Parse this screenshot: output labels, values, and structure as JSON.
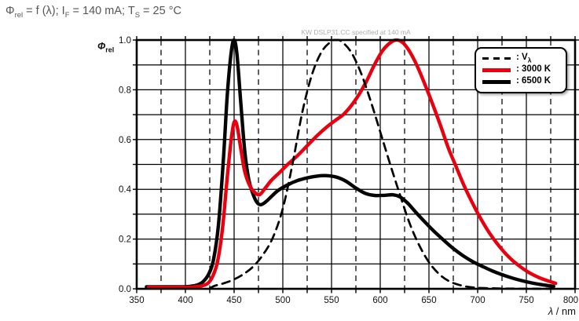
{
  "header": {
    "title": {
      "phi": "Φ",
      "phi_sub": "rel",
      "eq": " = f (λ); I",
      "i_sub": "F",
      "mid": " = 140 mA; T",
      "t_sub": "S",
      "end": " = 25 °C"
    }
  },
  "chart_data": {
    "type": "line",
    "watermark": "KW DSLP31.CC specified at 140 mA",
    "x_axis": {
      "label_italic": "λ",
      "label_rest": " / nm",
      "min": 350,
      "max": 800,
      "major_step": 50,
      "minor_step": 25,
      "tick_labels": [
        "350",
        "400",
        "450",
        "500",
        "550",
        "600",
        "650",
        "700",
        "750",
        "800"
      ]
    },
    "y_axis": {
      "label": "Φ",
      "label_sub": "rel",
      "min": 0.0,
      "max": 1.0,
      "major_step": 0.2,
      "minor_step": 0.1,
      "tick_labels": [
        "0.0",
        "0.2",
        "0.4",
        "0.6",
        "0.8",
        "1.0"
      ]
    },
    "grid": {
      "horizontal_every": 0.1,
      "vertical_solid_every": 50,
      "vertical_dashed_every": 25
    },
    "legend": {
      "position": "top-right",
      "entries": [
        {
          "prefix": ": V",
          "sub": "λ",
          "style": "dashed",
          "color": "#000000"
        },
        {
          "prefix": ": 3000 K",
          "sub": "",
          "style": "solid",
          "color": "#e8000e"
        },
        {
          "prefix": ": 6500 K",
          "sub": "",
          "style": "solid",
          "color": "#000000"
        }
      ]
    },
    "series": [
      {
        "name": "6500K",
        "color": "#050505",
        "width": 4.4,
        "dash": null,
        "points": [
          [
            360,
            0.008
          ],
          [
            395,
            0.008
          ],
          [
            405,
            0.01
          ],
          [
            412,
            0.015
          ],
          [
            418,
            0.028
          ],
          [
            424,
            0.06
          ],
          [
            429,
            0.12
          ],
          [
            434,
            0.26
          ],
          [
            439,
            0.52
          ],
          [
            443,
            0.78
          ],
          [
            447,
            0.95
          ],
          [
            450,
            1.0
          ],
          [
            453,
            0.94
          ],
          [
            457,
            0.74
          ],
          [
            461,
            0.55
          ],
          [
            465,
            0.44
          ],
          [
            469,
            0.385
          ],
          [
            473,
            0.35
          ],
          [
            477,
            0.338
          ],
          [
            482,
            0.348
          ],
          [
            488,
            0.37
          ],
          [
            495,
            0.395
          ],
          [
            505,
            0.418
          ],
          [
            515,
            0.435
          ],
          [
            525,
            0.446
          ],
          [
            535,
            0.453
          ],
          [
            545,
            0.455
          ],
          [
            555,
            0.449
          ],
          [
            565,
            0.432
          ],
          [
            575,
            0.405
          ],
          [
            585,
            0.383
          ],
          [
            595,
            0.375
          ],
          [
            605,
            0.376
          ],
          [
            613,
            0.378
          ],
          [
            620,
            0.37
          ],
          [
            628,
            0.345
          ],
          [
            636,
            0.31
          ],
          [
            645,
            0.272
          ],
          [
            655,
            0.232
          ],
          [
            665,
            0.196
          ],
          [
            675,
            0.162
          ],
          [
            685,
            0.133
          ],
          [
            695,
            0.109
          ],
          [
            705,
            0.09
          ],
          [
            715,
            0.072
          ],
          [
            725,
            0.057
          ],
          [
            735,
            0.044
          ],
          [
            745,
            0.033
          ],
          [
            755,
            0.024
          ],
          [
            765,
            0.017
          ],
          [
            778,
            0.01
          ]
        ]
      },
      {
        "name": "3000K",
        "color": "#e8000e",
        "width": 4.4,
        "dash": null,
        "points": [
          [
            362,
            0.006
          ],
          [
            400,
            0.006
          ],
          [
            410,
            0.008
          ],
          [
            417,
            0.012
          ],
          [
            423,
            0.022
          ],
          [
            428,
            0.05
          ],
          [
            433,
            0.11
          ],
          [
            438,
            0.24
          ],
          [
            443,
            0.45
          ],
          [
            447,
            0.6
          ],
          [
            450,
            0.67
          ],
          [
            453,
            0.655
          ],
          [
            457,
            0.56
          ],
          [
            461,
            0.47
          ],
          [
            466,
            0.415
          ],
          [
            471,
            0.388
          ],
          [
            476,
            0.378
          ],
          [
            481,
            0.4
          ],
          [
            488,
            0.435
          ],
          [
            496,
            0.465
          ],
          [
            505,
            0.5
          ],
          [
            515,
            0.535
          ],
          [
            525,
            0.575
          ],
          [
            535,
            0.615
          ],
          [
            545,
            0.65
          ],
          [
            555,
            0.68
          ],
          [
            562,
            0.7
          ],
          [
            570,
            0.735
          ],
          [
            578,
            0.78
          ],
          [
            586,
            0.835
          ],
          [
            594,
            0.9
          ],
          [
            602,
            0.955
          ],
          [
            609,
            0.985
          ],
          [
            616,
            1.0
          ],
          [
            623,
            0.99
          ],
          [
            630,
            0.955
          ],
          [
            638,
            0.895
          ],
          [
            646,
            0.82
          ],
          [
            654,
            0.74
          ],
          [
            662,
            0.655
          ],
          [
            670,
            0.565
          ],
          [
            678,
            0.49
          ],
          [
            686,
            0.415
          ],
          [
            694,
            0.35
          ],
          [
            702,
            0.29
          ],
          [
            712,
            0.225
          ],
          [
            722,
            0.172
          ],
          [
            732,
            0.128
          ],
          [
            742,
            0.094
          ],
          [
            752,
            0.067
          ],
          [
            762,
            0.047
          ],
          [
            772,
            0.032
          ],
          [
            780,
            0.022
          ]
        ]
      },
      {
        "name": "V-lambda",
        "color": "#000000",
        "width": 2.7,
        "dash": [
          10,
          7
        ],
        "points": [
          [
            425,
            0.002
          ],
          [
            430,
            0.012
          ],
          [
            440,
            0.023
          ],
          [
            450,
            0.038
          ],
          [
            460,
            0.06
          ],
          [
            470,
            0.091
          ],
          [
            480,
            0.139
          ],
          [
            490,
            0.208
          ],
          [
            500,
            0.323
          ],
          [
            510,
            0.503
          ],
          [
            520,
            0.71
          ],
          [
            530,
            0.862
          ],
          [
            540,
            0.954
          ],
          [
            550,
            0.995
          ],
          [
            555,
            1.0
          ],
          [
            560,
            0.995
          ],
          [
            570,
            0.952
          ],
          [
            580,
            0.87
          ],
          [
            590,
            0.757
          ],
          [
            600,
            0.631
          ],
          [
            610,
            0.503
          ],
          [
            620,
            0.381
          ],
          [
            630,
            0.265
          ],
          [
            640,
            0.175
          ],
          [
            650,
            0.107
          ],
          [
            660,
            0.061
          ],
          [
            670,
            0.032
          ],
          [
            680,
            0.017
          ],
          [
            690,
            0.008
          ],
          [
            700,
            0.004
          ],
          [
            715,
            0.002
          ],
          [
            730,
            0.001
          ],
          [
            750,
            0.0005
          ],
          [
            780,
            0.0002
          ]
        ]
      }
    ]
  },
  "colors": {
    "grid": "#000000",
    "border": "#000000",
    "tick_text": "#111111",
    "title_text": "#55565a",
    "watermark_text": "#aeaeae"
  }
}
